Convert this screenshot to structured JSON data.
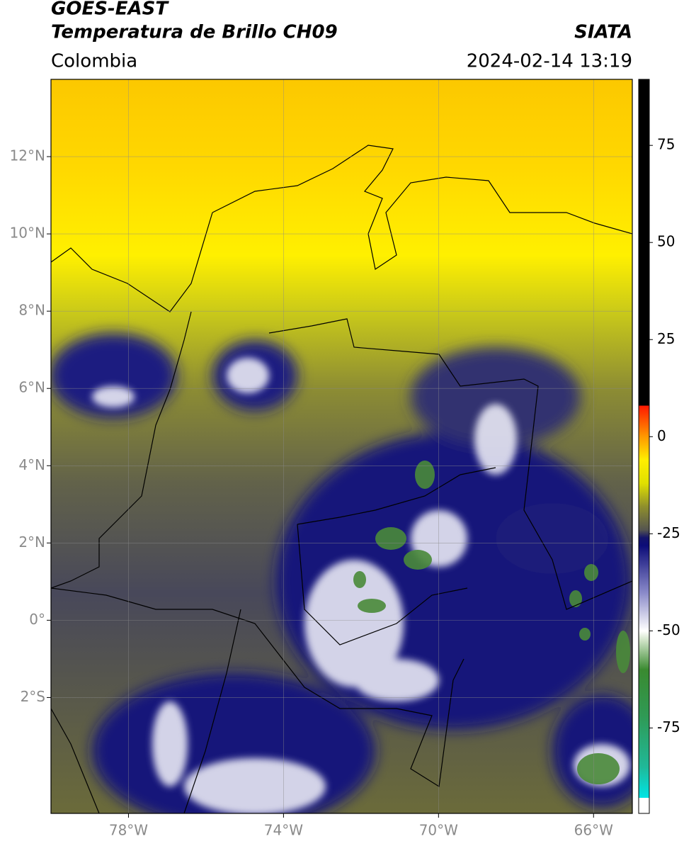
{
  "header": {
    "satellite": "GOES-EAST",
    "product": "Temperatura de Brillo CH09",
    "source": "SIATA",
    "region": "Colombia",
    "datetime": "2024-02-14 13:19"
  },
  "map": {
    "xlim": [
      -80,
      -65
    ],
    "ylim": [
      -5,
      14
    ],
    "xticks": [
      {
        "value": -78,
        "label": "78°W"
      },
      {
        "value": -74,
        "label": "74°W"
      },
      {
        "value": -70,
        "label": "70°W"
      },
      {
        "value": -66,
        "label": "66°W"
      }
    ],
    "yticks": [
      {
        "value": 12,
        "label": "12°N"
      },
      {
        "value": 10,
        "label": "10°N"
      },
      {
        "value": 8,
        "label": "8°N"
      },
      {
        "value": 6,
        "label": "6°N"
      },
      {
        "value": 4,
        "label": "4°N"
      },
      {
        "value": 2,
        "label": "2°N"
      },
      {
        "value": 0,
        "label": "0°"
      },
      {
        "value": -2,
        "label": "2°S"
      }
    ],
    "grid": true
  },
  "colorbar": {
    "ylim": [
      -97,
      92
    ],
    "yticks": [
      75,
      50,
      25,
      0,
      -25,
      -50,
      -75
    ],
    "stops": [
      {
        "value": -97,
        "color": "#ffffff"
      },
      {
        "value": -93,
        "color": "#ffffff"
      },
      {
        "value": -93,
        "color": "#00e5e5"
      },
      {
        "value": -85,
        "color": "#20b898"
      },
      {
        "value": -72,
        "color": "#2f9a55"
      },
      {
        "value": -60,
        "color": "#3a8a30"
      },
      {
        "value": -52,
        "color": "#d8e8d0"
      },
      {
        "value": -50,
        "color": "#ffffff"
      },
      {
        "value": -40,
        "color": "#8888c8"
      },
      {
        "value": -28,
        "color": "#0c0c78"
      },
      {
        "value": -26,
        "color": "#14146a"
      },
      {
        "value": -24,
        "color": "#555550"
      },
      {
        "value": -18,
        "color": "#8f8f2c"
      },
      {
        "value": -12,
        "color": "#e0e000"
      },
      {
        "value": -6,
        "color": "#ffee00"
      },
      {
        "value": 0,
        "color": "#ff9900"
      },
      {
        "value": 8,
        "color": "#ff1800"
      },
      {
        "value": 8,
        "color": "#000000"
      },
      {
        "value": 92,
        "color": "#000000"
      }
    ]
  }
}
